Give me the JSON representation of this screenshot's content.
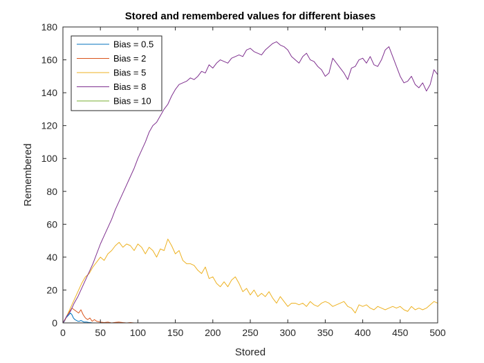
{
  "chart_data": {
    "type": "line",
    "title": "Stored and remembered values for different biases",
    "xlabel": "Stored",
    "ylabel": "Remembered",
    "xlim": [
      0,
      500
    ],
    "ylim": [
      0,
      180
    ],
    "xticks": [
      0,
      50,
      100,
      150,
      200,
      250,
      300,
      350,
      400,
      450,
      500
    ],
    "yticks": [
      0,
      20,
      40,
      60,
      80,
      100,
      120,
      140,
      160,
      180
    ],
    "grid": false,
    "legend_position": "top-left",
    "series": [
      {
        "name": "Bias = 0.5",
        "color": "#0072BD",
        "x": [
          0,
          2,
          4,
          6,
          8,
          10,
          12,
          14,
          16,
          18,
          20,
          22,
          24,
          26,
          28,
          30,
          32,
          34,
          36,
          38,
          40
        ],
        "y": [
          0,
          1,
          3,
          4,
          5,
          6,
          5,
          3,
          2,
          1.5,
          1,
          1,
          1.5,
          1,
          0.5,
          0.5,
          0.5,
          0.3,
          0.2,
          0.1,
          0
        ]
      },
      {
        "name": "Bias = 2",
        "color": "#D95319",
        "x": [
          0,
          3,
          6,
          9,
          12,
          15,
          18,
          21,
          24,
          27,
          30,
          33,
          36,
          39,
          42,
          45,
          50,
          55,
          60,
          65,
          70,
          75,
          80,
          85,
          90,
          95
        ],
        "y": [
          0,
          2,
          5,
          7,
          9,
          8,
          7,
          6,
          8,
          5,
          3,
          2,
          3,
          1,
          2,
          1,
          0.5,
          0.2,
          0.5,
          0,
          0.3,
          0.5,
          0.2,
          0,
          0.2,
          0
        ]
      },
      {
        "name": "Bias = 5",
        "color": "#EDB120",
        "x": [
          0,
          5,
          10,
          15,
          20,
          25,
          30,
          35,
          40,
          45,
          50,
          55,
          60,
          65,
          70,
          75,
          80,
          85,
          90,
          95,
          100,
          105,
          110,
          115,
          120,
          125,
          130,
          135,
          140,
          145,
          150,
          155,
          160,
          165,
          170,
          175,
          180,
          185,
          190,
          195,
          200,
          205,
          210,
          215,
          220,
          225,
          230,
          235,
          240,
          245,
          250,
          255,
          260,
          265,
          270,
          275,
          280,
          285,
          290,
          295,
          300,
          305,
          310,
          315,
          320,
          325,
          330,
          335,
          340,
          345,
          350,
          355,
          360,
          365,
          370,
          375,
          380,
          385,
          390,
          395,
          400,
          405,
          410,
          415,
          420,
          425,
          430,
          435,
          440,
          445,
          450,
          455,
          460,
          465,
          470,
          475,
          480,
          485,
          490,
          495,
          500
        ],
        "y": [
          0,
          4,
          9,
          14,
          19,
          24,
          28,
          30,
          34,
          37,
          40,
          38,
          42,
          44,
          47,
          49,
          46,
          48,
          47,
          44,
          48,
          46,
          42,
          46,
          44,
          40,
          45,
          44,
          51,
          47,
          42,
          44,
          38,
          36,
          36,
          35,
          32,
          30,
          34,
          27,
          28,
          24,
          22,
          25,
          22,
          26,
          28,
          24,
          19,
          21,
          17,
          20,
          16,
          18,
          16,
          19,
          15,
          12,
          16,
          13,
          10,
          12,
          12,
          11,
          12,
          10,
          13,
          11,
          10,
          12,
          13,
          12,
          10,
          11,
          12,
          13,
          10,
          9,
          6,
          11,
          10,
          11,
          9,
          8,
          10,
          9,
          8,
          9,
          10,
          9,
          10,
          8,
          7,
          10,
          8,
          9,
          8,
          9,
          11,
          13,
          12
        ]
      },
      {
        "name": "Bias = 8",
        "color": "#7E2F8E",
        "x": [
          0,
          5,
          10,
          15,
          20,
          25,
          30,
          35,
          40,
          45,
          50,
          55,
          60,
          65,
          70,
          75,
          80,
          85,
          90,
          95,
          100,
          105,
          110,
          115,
          120,
          125,
          130,
          135,
          140,
          145,
          150,
          155,
          160,
          165,
          170,
          175,
          180,
          185,
          190,
          195,
          200,
          205,
          210,
          215,
          220,
          225,
          230,
          235,
          240,
          245,
          250,
          255,
          260,
          265,
          270,
          275,
          280,
          285,
          290,
          295,
          300,
          305,
          310,
          315,
          320,
          325,
          330,
          335,
          340,
          345,
          350,
          355,
          360,
          365,
          370,
          375,
          380,
          385,
          390,
          395,
          400,
          405,
          410,
          415,
          420,
          425,
          430,
          435,
          440,
          445,
          450,
          455,
          460,
          465,
          470,
          475,
          480,
          485,
          490,
          495,
          500
        ],
        "y": [
          0,
          4,
          7,
          12,
          16,
          21,
          26,
          31,
          36,
          42,
          48,
          53,
          58,
          63,
          69,
          74,
          79,
          84,
          89,
          94,
          100,
          105,
          110,
          116,
          120,
          122,
          126,
          130,
          133,
          138,
          142,
          145,
          146,
          147,
          149,
          148,
          150,
          153,
          152,
          157,
          155,
          158,
          160,
          159,
          158,
          161,
          162,
          163,
          162,
          166,
          167,
          165,
          164,
          163,
          166,
          168,
          170,
          171,
          169,
          168,
          166,
          162,
          160,
          158,
          162,
          164,
          160,
          159,
          156,
          154,
          150,
          152,
          161,
          158,
          155,
          152,
          148,
          155,
          156,
          160,
          161,
          158,
          162,
          157,
          156,
          160,
          166,
          168,
          162,
          156,
          150,
          146,
          147,
          150,
          145,
          143,
          146,
          141,
          145,
          154,
          151
        ]
      },
      {
        "name": "Bias = 10",
        "color": "#77AC30",
        "x": [],
        "y": []
      }
    ]
  }
}
